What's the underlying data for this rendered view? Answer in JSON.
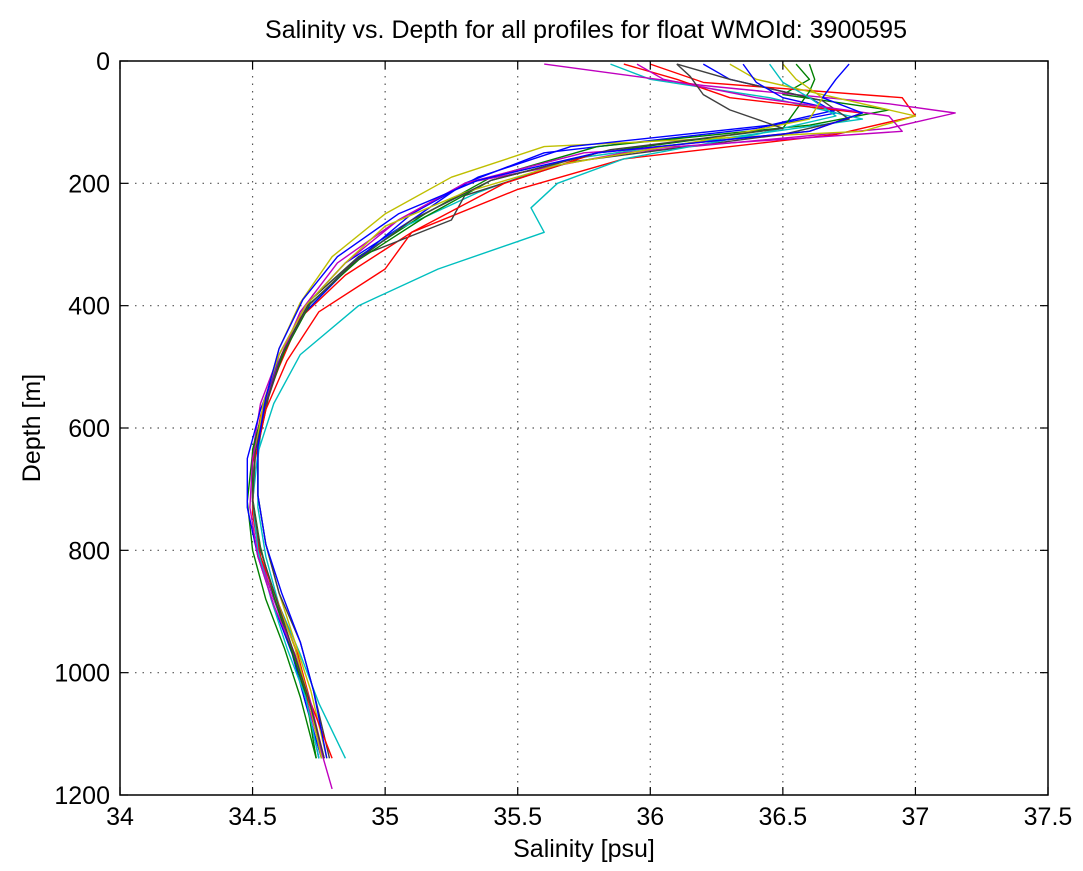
{
  "chart_data": {
    "type": "line",
    "title": "Salinity vs. Depth for all profiles for float WMOId: 3900595",
    "xlabel": "Salinity [psu]",
    "ylabel": "Depth [m]",
    "xlim": [
      34,
      37.5
    ],
    "ylim": [
      0,
      1200
    ],
    "y_reversed": true,
    "grid": true,
    "x_ticks": [
      "34",
      "34.5",
      "35",
      "35.5",
      "36",
      "36.5",
      "37",
      "37.5"
    ],
    "y_ticks": [
      "0",
      "200",
      "400",
      "600",
      "800",
      "1000",
      "1200"
    ],
    "colors": [
      "#0000ff",
      "#008000",
      "#ff0000",
      "#00bfbf",
      "#bf00bf",
      "#bfbf00",
      "#404040"
    ],
    "series": [
      {
        "depth": [
          5,
          30,
          60,
          85,
          110,
          150,
          200,
          260,
          330,
          400,
          480,
          560,
          640,
          720,
          800,
          880,
          960,
          1040,
          1140
        ],
        "salinity": [
          36.2,
          36.3,
          36.6,
          36.7,
          36.4,
          35.6,
          35.3,
          35.1,
          34.85,
          34.7,
          34.6,
          34.55,
          34.5,
          34.5,
          34.52,
          34.58,
          34.65,
          34.7,
          34.75
        ]
      },
      {
        "depth": [
          5,
          30,
          55,
          80,
          105,
          140,
          190,
          250,
          320,
          390,
          470,
          550,
          640,
          720,
          800,
          880,
          960,
          1040,
          1140
        ],
        "salinity": [
          36.55,
          36.6,
          36.5,
          36.9,
          36.6,
          35.8,
          35.4,
          35.15,
          34.9,
          34.72,
          34.62,
          34.55,
          34.5,
          34.48,
          34.5,
          34.55,
          34.62,
          34.68,
          34.74
        ]
      },
      {
        "depth": [
          5,
          35,
          60,
          90,
          120,
          160,
          210,
          280,
          350,
          420,
          500,
          580,
          660,
          740,
          820,
          900,
          980,
          1060,
          1140
        ],
        "salinity": [
          36.0,
          36.2,
          36.95,
          37.0,
          36.7,
          35.9,
          35.5,
          35.1,
          34.85,
          34.68,
          34.6,
          34.53,
          34.5,
          34.5,
          34.53,
          34.6,
          34.66,
          34.72,
          34.77
        ]
      },
      {
        "depth": [
          5,
          30,
          60,
          95,
          125,
          160,
          215,
          275,
          340,
          410,
          490,
          570,
          650,
          730,
          810,
          890,
          970,
          1050,
          1140
        ],
        "salinity": [
          35.85,
          36.0,
          36.45,
          36.8,
          36.3,
          35.7,
          35.35,
          35.05,
          34.85,
          34.7,
          34.6,
          34.54,
          34.52,
          34.52,
          34.55,
          34.6,
          34.68,
          34.75,
          34.85
        ]
      },
      {
        "depth": [
          5,
          40,
          70,
          85,
          110,
          150,
          200,
          260,
          330,
          400,
          480,
          560,
          640,
          720,
          800,
          880,
          960,
          1040,
          1190
        ],
        "salinity": [
          35.6,
          36.2,
          36.9,
          37.15,
          36.9,
          35.9,
          35.3,
          35.05,
          34.85,
          34.7,
          34.6,
          34.53,
          34.5,
          34.5,
          34.52,
          34.58,
          34.65,
          34.7,
          34.8
        ]
      },
      {
        "depth": [
          5,
          30,
          60,
          90,
          115,
          140,
          190,
          250,
          320,
          395,
          470,
          550,
          630,
          710,
          790,
          870,
          950,
          1030,
          1140
        ],
        "salinity": [
          36.3,
          36.4,
          36.7,
          37.0,
          36.8,
          35.6,
          35.25,
          35.0,
          34.8,
          34.68,
          34.6,
          34.55,
          34.52,
          34.52,
          34.55,
          34.6,
          34.66,
          34.72,
          34.78
        ]
      },
      {
        "depth": [
          5,
          30,
          65,
          95,
          120,
          165,
          220,
          260,
          320,
          390,
          470,
          550,
          630,
          710,
          790,
          870,
          950,
          1030,
          1140
        ],
        "salinity": [
          36.1,
          36.3,
          36.65,
          36.75,
          36.5,
          35.7,
          35.3,
          35.25,
          34.9,
          34.72,
          34.62,
          34.56,
          34.52,
          34.52,
          34.55,
          34.6,
          34.68,
          34.73,
          34.79
        ]
      },
      {
        "depth": [
          5,
          35,
          60,
          80,
          105,
          140,
          190,
          250,
          330,
          410,
          490,
          570,
          650,
          730,
          810,
          890,
          970,
          1050,
          1140
        ],
        "salinity": [
          36.35,
          36.4,
          36.5,
          36.7,
          36.45,
          35.7,
          35.35,
          35.1,
          34.88,
          34.7,
          34.6,
          34.53,
          34.48,
          34.48,
          34.52,
          34.58,
          34.65,
          34.7,
          34.76
        ]
      },
      {
        "depth": [
          5,
          30,
          50,
          80,
          110,
          150,
          195,
          255,
          325,
          395,
          475,
          555,
          635,
          715,
          795,
          875,
          955,
          1035,
          1140
        ],
        "salinity": [
          36.6,
          36.62,
          36.6,
          36.55,
          36.5,
          35.8,
          35.4,
          35.15,
          34.9,
          34.72,
          34.62,
          34.55,
          34.5,
          34.5,
          34.53,
          34.58,
          34.64,
          34.7,
          34.74
        ]
      },
      {
        "depth": [
          5,
          30,
          60,
          85,
          115,
          150,
          200,
          280,
          340,
          410,
          490,
          570,
          650,
          730,
          810,
          890,
          970,
          1050,
          1140
        ],
        "salinity": [
          35.9,
          36.1,
          36.3,
          36.8,
          36.6,
          35.8,
          35.45,
          35.1,
          35.0,
          34.75,
          34.63,
          34.55,
          34.51,
          34.5,
          34.53,
          34.6,
          34.67,
          34.72,
          34.8
        ]
      },
      {
        "depth": [
          5,
          35,
          60,
          90,
          120,
          160,
          200,
          240,
          280,
          340,
          400,
          480,
          560,
          640,
          720,
          800,
          880,
          960,
          1040,
          1140
        ],
        "salinity": [
          36.45,
          36.5,
          36.6,
          36.7,
          36.4,
          35.9,
          35.65,
          35.55,
          35.6,
          35.2,
          34.9,
          34.68,
          34.58,
          34.52,
          34.5,
          34.52,
          34.57,
          34.63,
          34.7,
          34.75
        ]
      },
      {
        "depth": [
          5,
          30,
          60,
          90,
          115,
          150,
          200,
          260,
          330,
          410,
          490,
          570,
          650,
          730,
          810,
          890,
          970,
          1050,
          1140
        ],
        "salinity": [
          35.95,
          36.05,
          36.4,
          36.9,
          36.95,
          35.75,
          35.3,
          35.05,
          34.82,
          34.68,
          34.6,
          34.54,
          34.5,
          34.49,
          34.52,
          34.58,
          34.66,
          34.72,
          34.77
        ]
      },
      {
        "depth": [
          5,
          30,
          60,
          95,
          130,
          170,
          215,
          270,
          330,
          400,
          480,
          560,
          640,
          720,
          800,
          880,
          960,
          1040,
          1140
        ],
        "salinity": [
          36.5,
          36.55,
          36.65,
          36.6,
          36.2,
          35.65,
          35.3,
          35.0,
          34.85,
          34.7,
          34.6,
          34.54,
          34.51,
          34.5,
          34.53,
          34.59,
          34.66,
          34.71,
          34.76
        ]
      },
      {
        "depth": [
          5,
          25,
          55,
          80,
          110,
          145,
          195,
          260,
          330,
          400,
          480,
          560,
          640,
          720,
          800,
          880,
          960,
          1040,
          1140
        ],
        "salinity": [
          36.1,
          36.15,
          36.2,
          36.3,
          36.5,
          35.85,
          35.4,
          35.1,
          34.88,
          34.71,
          34.61,
          34.55,
          34.51,
          34.5,
          34.53,
          34.59,
          34.65,
          34.71,
          34.77
        ]
      },
      {
        "depth": [
          5,
          30,
          60,
          85,
          115,
          150,
          195,
          250,
          320,
          390,
          470,
          550,
          630,
          710,
          790,
          870,
          950,
          1030,
          1140
        ],
        "salinity": [
          36.75,
          36.7,
          36.65,
          36.8,
          36.6,
          35.8,
          35.35,
          35.05,
          34.82,
          34.69,
          34.6,
          34.55,
          34.52,
          34.52,
          34.55,
          34.61,
          34.68,
          34.73,
          34.78
        ]
      }
    ]
  }
}
